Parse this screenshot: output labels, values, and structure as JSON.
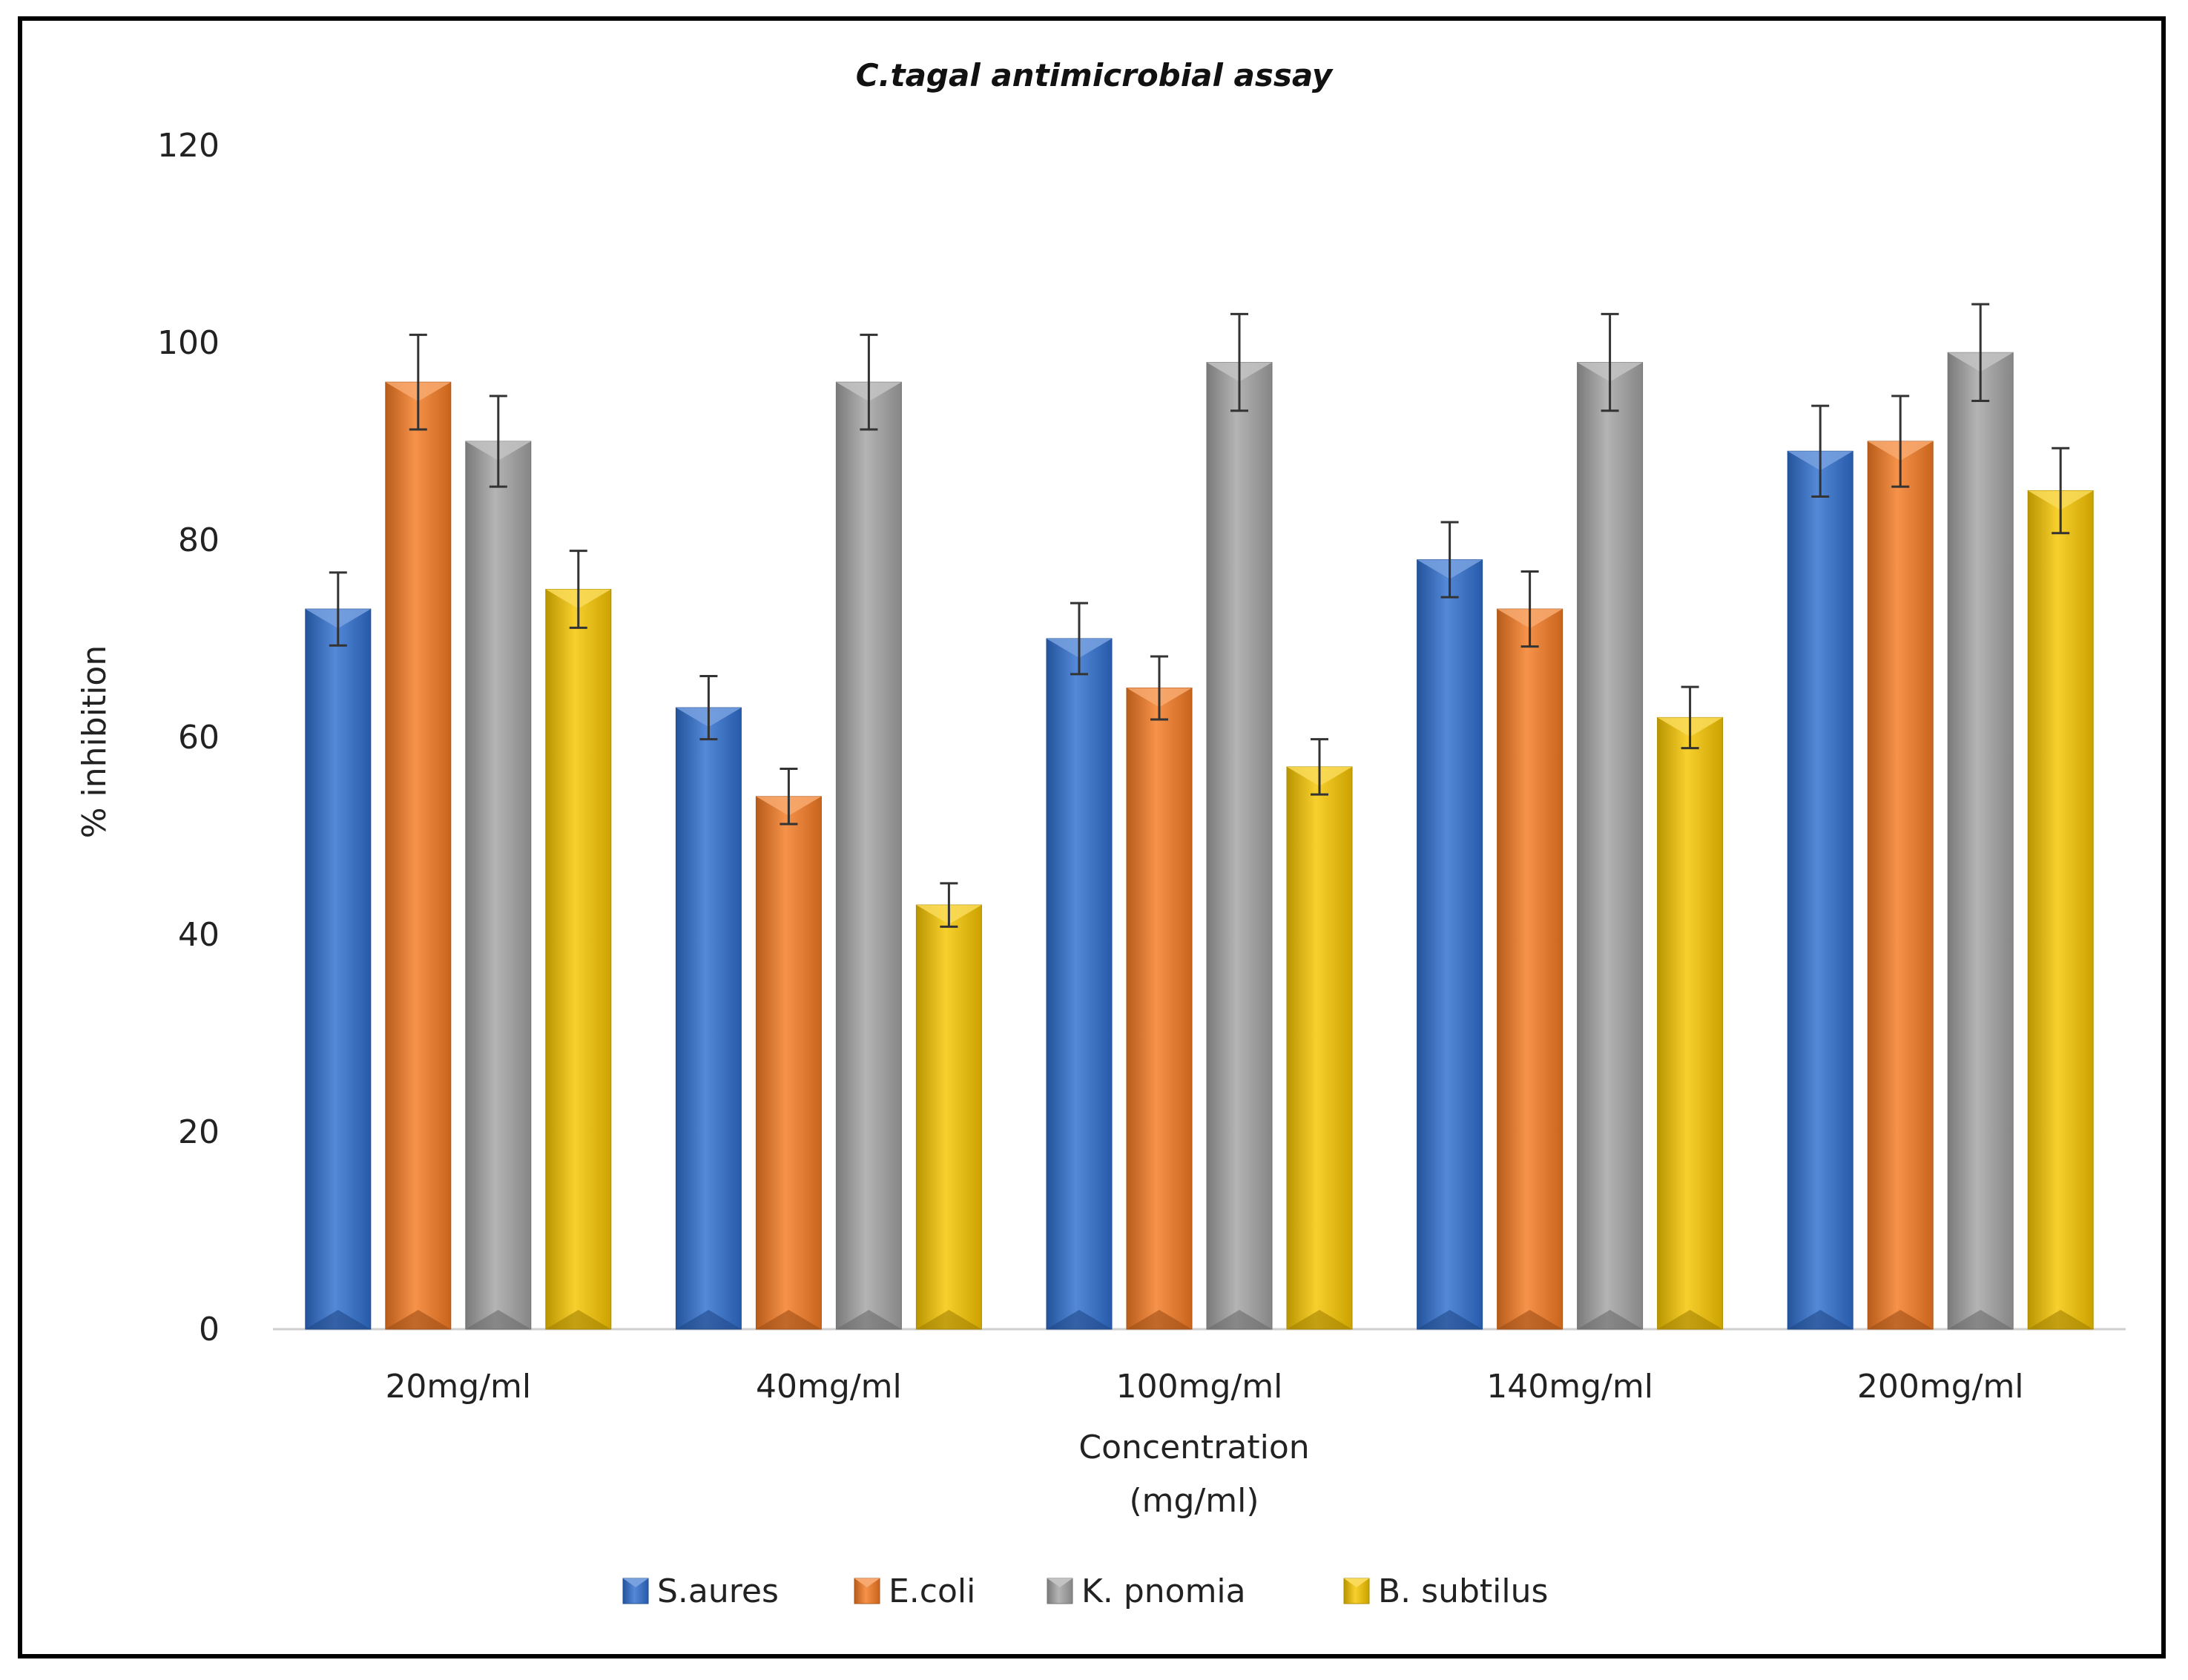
{
  "chart_data": {
    "type": "bar",
    "title": "C.tagal antimicrobial assay",
    "xlabel_lines": [
      "Concentration",
      "(mg/ml)"
    ],
    "ylabel": "% inhibition",
    "ylim": [
      0,
      120
    ],
    "yticks": [
      "0",
      "20",
      "40",
      "60",
      "80",
      "100",
      "120"
    ],
    "categories": [
      "20mg/ml",
      "40mg/ml",
      "100mg/ml",
      "140mg/ml",
      "200mg/ml"
    ],
    "series": [
      {
        "name": "S.aures",
        "color": "#2f6fcf",
        "values": [
          73,
          63,
          70,
          78,
          89
        ],
        "errors": [
          3.7,
          3.2,
          3.6,
          3.8,
          4.6
        ]
      },
      {
        "name": "E.coli",
        "color": "#f47a22",
        "values": [
          96,
          54,
          65,
          73,
          90
        ],
        "errors": [
          4.8,
          2.8,
          3.2,
          3.8,
          4.6
        ]
      },
      {
        "name": "K. pnomia",
        "color": "#a3a3a3",
        "values": [
          90,
          96,
          98,
          98,
          99
        ],
        "errors": [
          4.6,
          4.8,
          4.9,
          4.9,
          4.9
        ]
      },
      {
        "name": "B. subtilus",
        "color": "#f7c600",
        "values": [
          75,
          43,
          57,
          62,
          85
        ],
        "errors": [
          3.9,
          2.2,
          2.8,
          3.1,
          4.3
        ]
      }
    ],
    "grid": false,
    "legend": "bottom"
  }
}
